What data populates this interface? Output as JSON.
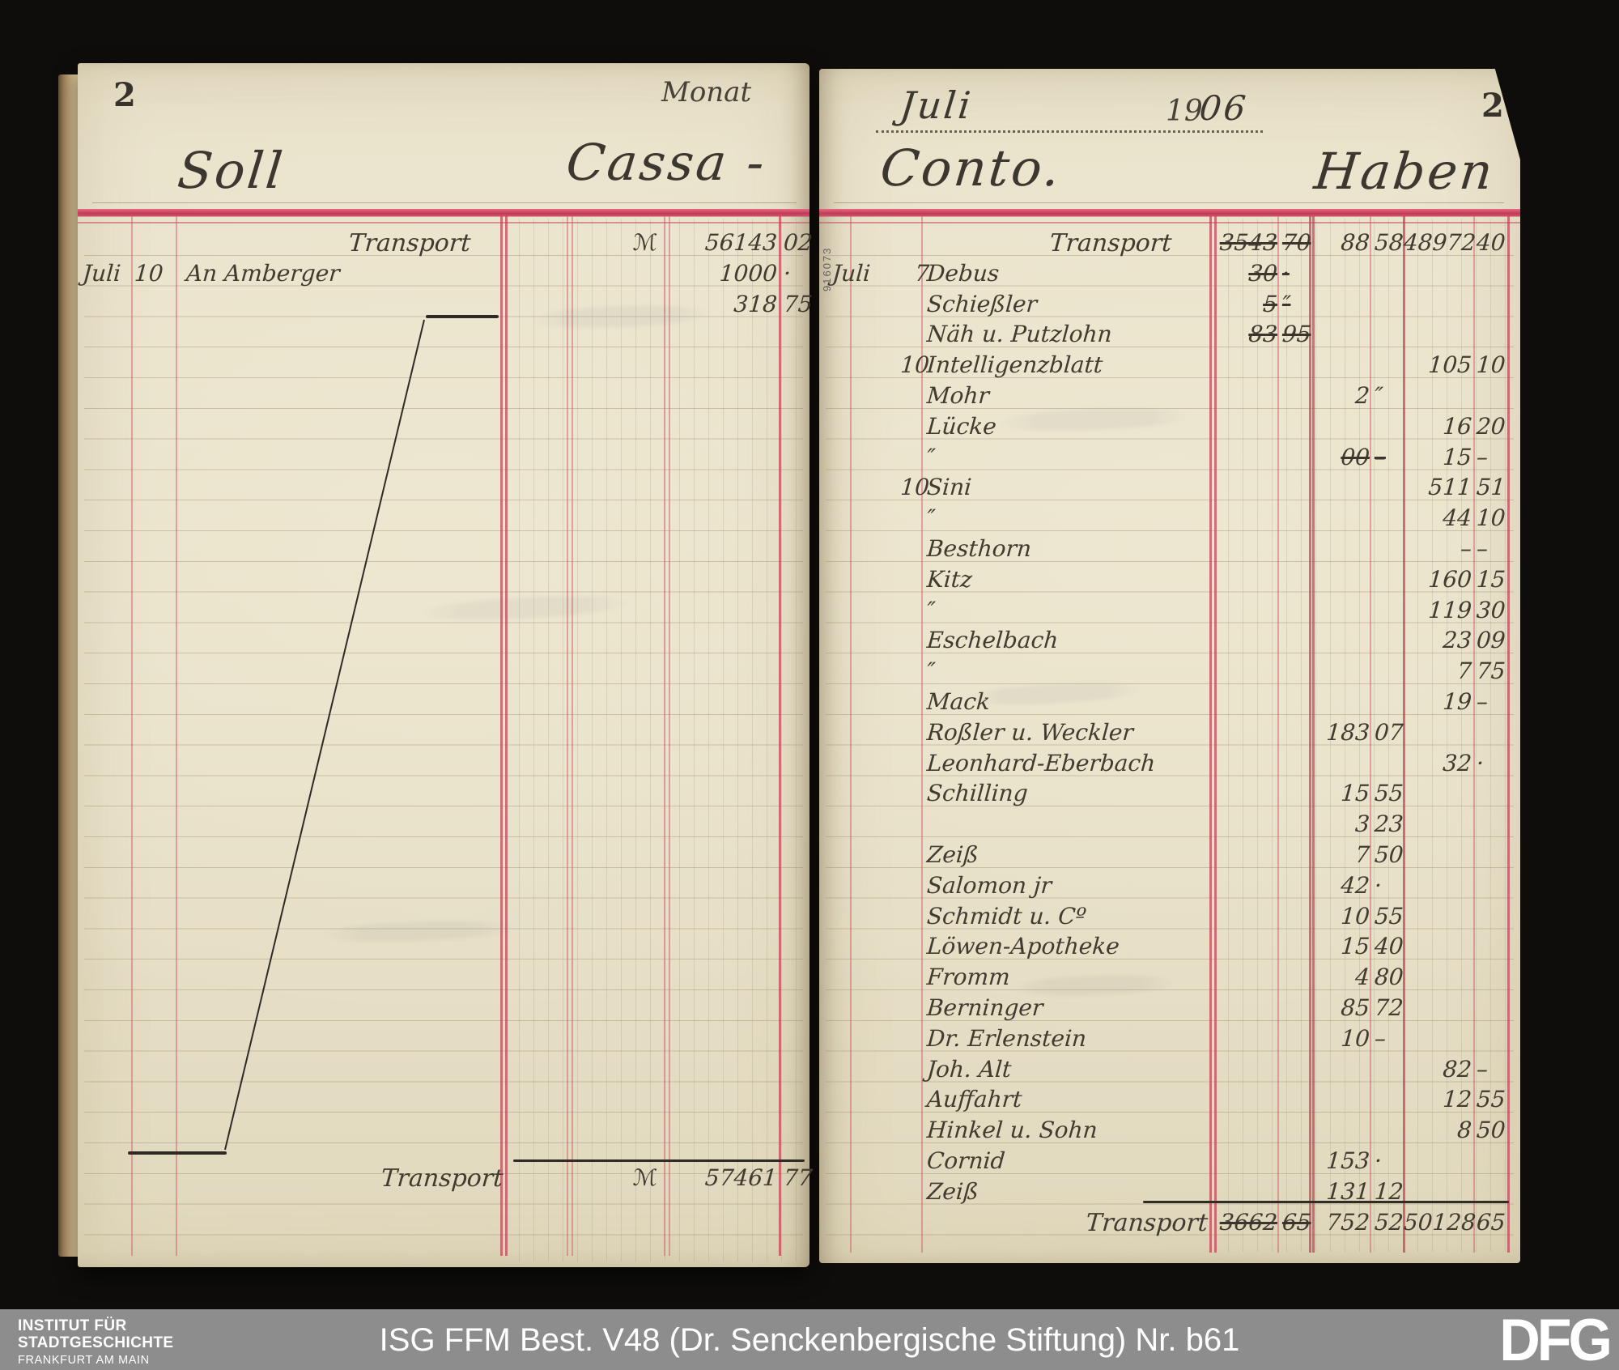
{
  "footer_bar": {
    "institute_line1": "INSTITUT FÜR",
    "institute_line2": "STADTGESCHICHTE",
    "institute_line3": "FRANKFURT AM MAIN",
    "reference_label": "ISG FFM Best. V48 (Dr. Senckenbergische Stiftung) Nr. b61",
    "logo_text": "DFG"
  },
  "ledger": {
    "month_label": "Monat",
    "month_value": "Juli",
    "year_printed": "19",
    "year_written": "06",
    "left_page_number": "2",
    "right_page_number": "2",
    "soll_title": "Soll",
    "cassa_title": "Cassa -",
    "conto_title": "Conto.",
    "haben_title": "Haben",
    "currency_symbol": "ℳ",
    "stamp_number": "916073",
    "colors": {
      "rule_red": "#c94a62",
      "ink": "#3a362e",
      "paper": "#e9e2ca",
      "cover": "#211e1b",
      "footer_gray": "#8d8d8d"
    },
    "left_page": {
      "rows": [
        {
          "desc": "Transport",
          "align": "center",
          "currency": "ℳ",
          "mark": "56143",
          "pf": "02"
        },
        {
          "month": "Juli",
          "day": "10",
          "desc": "An Amberger",
          "mark": "1000",
          "pf": "·"
        },
        {
          "mark": "318",
          "pf": "75"
        }
      ],
      "total_row": {
        "desc": "Transport",
        "currency": "ℳ",
        "mark": "57461",
        "pf": "77"
      }
    },
    "right_page": {
      "rows": [
        {
          "desc": "Transport",
          "align": "center",
          "c1": {
            "m": "3543",
            "p": "70",
            "struck": true
          },
          "c2": {
            "m": "88",
            "p": "58"
          },
          "c3": {
            "m": "48972",
            "p": "40"
          }
        },
        {
          "month": "Juli",
          "day": "7",
          "desc": "Debus",
          "c1": {
            "m": "30",
            "p": "·",
            "struck": true
          }
        },
        {
          "desc": "Schießler",
          "c1": {
            "m": "5",
            "p": "″",
            "struck": true
          }
        },
        {
          "desc": "Näh u. Putzlohn",
          "c1": {
            "m": "83",
            "p": "95",
            "struck": true
          }
        },
        {
          "day": "10",
          "desc": "Intelligenzblatt",
          "c3": {
            "m": "105",
            "p": "10"
          }
        },
        {
          "desc": "Mohr",
          "c2": {
            "m": "2",
            "p": "″"
          }
        },
        {
          "desc": "Lücke",
          "c3": {
            "m": "16",
            "p": "20"
          }
        },
        {
          "desc": "″",
          "c2": {
            "m": "00",
            "p": "–",
            "struck": true
          },
          "c3": {
            "m": "15",
            "p": "–"
          }
        },
        {
          "day": "10",
          "desc": "Sini",
          "c3": {
            "m": "511",
            "p": "51"
          }
        },
        {
          "desc": "″",
          "c3": {
            "m": "44",
            "p": "10"
          }
        },
        {
          "desc": "Besthorn",
          "c3": {
            "m": "–",
            "p": "–"
          }
        },
        {
          "desc": "Kitz",
          "c3": {
            "m": "160",
            "p": "15"
          }
        },
        {
          "desc": "″",
          "c3": {
            "m": "119",
            "p": "30"
          }
        },
        {
          "desc": "Eschelbach",
          "c3": {
            "m": "23",
            "p": "09"
          }
        },
        {
          "desc": "″",
          "c3": {
            "m": "7",
            "p": "75"
          }
        },
        {
          "desc": "Mack",
          "c3": {
            "m": "19",
            "p": "–"
          }
        },
        {
          "desc": "Roßler u. Weckler",
          "c2": {
            "m": "183",
            "p": "07"
          }
        },
        {
          "desc": "Leonhard-Eberbach",
          "c3": {
            "m": "32",
            "p": "·"
          }
        },
        {
          "desc": "Schilling",
          "c2": {
            "m": "15",
            "p": "55"
          }
        },
        {
          "desc": "",
          "c2": {
            "m": "3",
            "p": "23"
          }
        },
        {
          "desc": "Zeiß",
          "c2": {
            "m": "7",
            "p": "50"
          }
        },
        {
          "desc": "Salomon jr",
          "c2": {
            "m": "42",
            "p": "·"
          }
        },
        {
          "desc": "Schmidt u. Cº",
          "c2": {
            "m": "10",
            "p": "55"
          }
        },
        {
          "desc": "Löwen-Apotheke",
          "c2": {
            "m": "15",
            "p": "40"
          }
        },
        {
          "desc": "Fromm",
          "c2": {
            "m": "4",
            "p": "80"
          }
        },
        {
          "desc": "Berninger",
          "c2": {
            "m": "85",
            "p": "72"
          }
        },
        {
          "desc": "Dr. Erlenstein",
          "c2": {
            "m": "10",
            "p": "–"
          }
        },
        {
          "desc": "Joh. Alt",
          "c3": {
            "m": "82",
            "p": "–"
          }
        },
        {
          "desc": "Auffahrt",
          "c3": {
            "m": "12",
            "p": "55"
          }
        },
        {
          "desc": "Hinkel u. Sohn",
          "c3": {
            "m": "8",
            "p": "50"
          }
        },
        {
          "desc": "Cornid",
          "c2": {
            "m": "153",
            "p": "·"
          }
        },
        {
          "desc": "Zeiß",
          "c2": {
            "m": "131",
            "p": "12"
          }
        },
        {
          "desc": "Transport",
          "align": "right",
          "c1": {
            "m": "3662",
            "p": "65",
            "struck": true
          },
          "c2": {
            "m": "752",
            "p": "52"
          },
          "c3": {
            "m": "50128",
            "p": "65"
          }
        }
      ]
    }
  }
}
